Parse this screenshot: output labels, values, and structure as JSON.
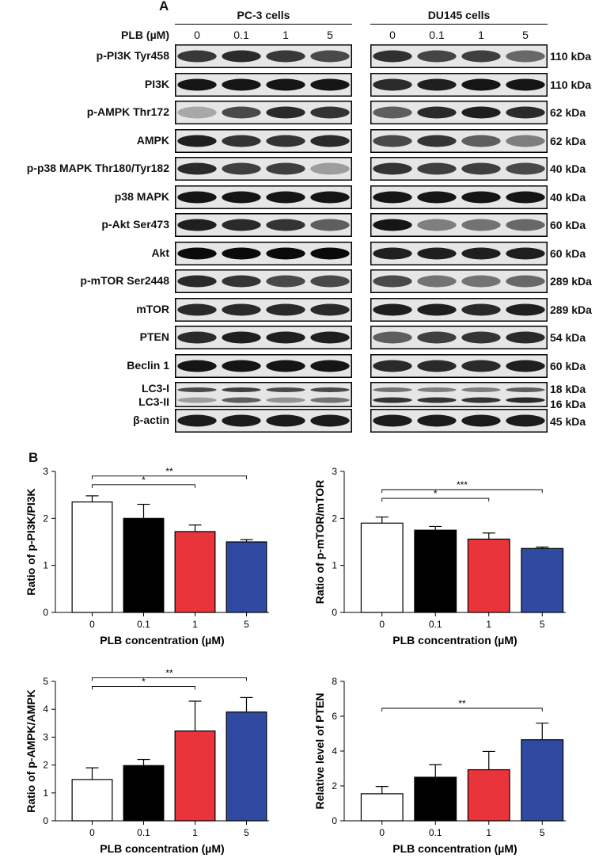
{
  "panel_letters": {
    "a": "A",
    "b": "B"
  },
  "western_blot": {
    "treatment_label": "PLB (µM)",
    "doses": [
      "0",
      "0.1",
      "1",
      "5"
    ],
    "cell_lines": [
      {
        "name": "PC-3 cells"
      },
      {
        "name": "DU145 cells"
      }
    ],
    "rows": [
      {
        "protein": "p-PI3K Tyr458",
        "size": "110 kDa",
        "pc3": [
          0.78,
          0.85,
          0.78,
          0.7
        ],
        "du145": [
          0.82,
          0.72,
          0.75,
          0.55
        ]
      },
      {
        "protein": "PI3K",
        "size": "110 kDa",
        "pc3": [
          0.95,
          0.95,
          0.95,
          0.95
        ],
        "du145": [
          0.85,
          0.9,
          0.95,
          0.95
        ]
      },
      {
        "protein": "p-AMPK Thr172",
        "size": "62 kDa",
        "pc3": [
          0.25,
          0.7,
          0.85,
          0.8
        ],
        "du145": [
          0.6,
          0.85,
          0.9,
          0.85
        ]
      },
      {
        "protein": "AMPK",
        "size": "62 kDa",
        "pc3": [
          0.9,
          0.8,
          0.8,
          0.85
        ],
        "du145": [
          0.7,
          0.8,
          0.6,
          0.45
        ]
      },
      {
        "protein": "p-p38 MAPK Thr180/Tyr182",
        "size": "40 kDa",
        "pc3": [
          0.85,
          0.75,
          0.75,
          0.3
        ],
        "du145": [
          0.8,
          0.75,
          0.75,
          0.7
        ]
      },
      {
        "protein": "p38 MAPK",
        "size": "40 kDa",
        "pc3": [
          0.95,
          0.95,
          0.95,
          0.95
        ],
        "du145": [
          0.95,
          0.95,
          0.95,
          0.95
        ]
      },
      {
        "protein": "p-Akt Ser473",
        "size": "60 kDa",
        "pc3": [
          0.9,
          0.85,
          0.8,
          0.6
        ],
        "du145": [
          0.95,
          0.45,
          0.5,
          0.55
        ]
      },
      {
        "protein": "Akt",
        "size": "60 kDa",
        "pc3": [
          1.0,
          1.0,
          1.0,
          1.0
        ],
        "du145": [
          0.9,
          0.9,
          0.9,
          0.9
        ]
      },
      {
        "protein": "p-mTOR Ser2448",
        "size": "289 kDa",
        "pc3": [
          0.85,
          0.8,
          0.7,
          0.7
        ],
        "du145": [
          0.7,
          0.5,
          0.5,
          0.55
        ]
      },
      {
        "protein": "mTOR",
        "size": "289 kDa",
        "pc3": [
          0.85,
          0.85,
          0.85,
          0.85
        ],
        "du145": [
          0.9,
          0.9,
          0.85,
          0.9
        ]
      },
      {
        "protein": "PTEN",
        "size": "54 kDa",
        "pc3": [
          0.85,
          0.9,
          0.9,
          0.9
        ],
        "du145": [
          0.6,
          0.75,
          0.8,
          0.85
        ]
      },
      {
        "protein": "Beclin 1",
        "size": "60 kDa",
        "pc3": [
          0.95,
          0.95,
          0.95,
          0.95
        ],
        "du145": [
          0.85,
          0.85,
          0.85,
          0.9
        ]
      }
    ],
    "lc3": {
      "label_1": "LC3-I",
      "label_2": "LC3-II",
      "size_1": "18 kDa",
      "size_2": "16 kDa"
    },
    "actin": {
      "protein": "β-actin",
      "size": "45 kDa"
    }
  },
  "chart_data": [
    {
      "type": "bar",
      "categories": [
        "0",
        "0.1",
        "1",
        "5"
      ],
      "values": [
        2.35,
        2.0,
        1.72,
        1.5
      ],
      "errors": [
        0.13,
        0.3,
        0.14,
        0.05
      ],
      "colors": [
        "#ffffff",
        "#000000",
        "#e8343a",
        "#2f4aa0"
      ],
      "xlabel": "PLB concentration (µM)",
      "ylabel": "Ratio of p-PI3K/PI3K",
      "ylim": [
        0,
        3
      ],
      "yticks": [
        "0",
        "1",
        "2",
        "3"
      ],
      "significance": [
        {
          "from": "0",
          "to": "1",
          "label": "*"
        },
        {
          "from": "0",
          "to": "5",
          "label": "**"
        }
      ]
    },
    {
      "type": "bar",
      "categories": [
        "0",
        "0.1",
        "1",
        "5"
      ],
      "values": [
        1.9,
        1.75,
        1.56,
        1.36
      ],
      "errors": [
        0.13,
        0.08,
        0.13,
        0.03
      ],
      "colors": [
        "#ffffff",
        "#000000",
        "#e8343a",
        "#2f4aa0"
      ],
      "xlabel": "PLB concentration (µM)",
      "ylabel": "Ratio of p-mTOR/mTOR",
      "ylim": [
        0,
        3
      ],
      "yticks": [
        "0",
        "1",
        "2",
        "3"
      ],
      "significance": [
        {
          "from": "0",
          "to": "1",
          "label": "*"
        },
        {
          "from": "0",
          "to": "5",
          "label": "***"
        }
      ]
    },
    {
      "type": "bar",
      "categories": [
        "0",
        "0.1",
        "1",
        "5"
      ],
      "values": [
        1.48,
        1.98,
        3.22,
        3.9
      ],
      "errors": [
        0.42,
        0.22,
        1.07,
        0.52
      ],
      "colors": [
        "#ffffff",
        "#000000",
        "#e8343a",
        "#2f4aa0"
      ],
      "xlabel": "PLB concentration (µM)",
      "ylabel": "Ratio of p-AMPK/AMPK",
      "ylim": [
        0,
        5
      ],
      "yticks": [
        "0",
        "1",
        "2",
        "3",
        "4",
        "5"
      ],
      "significance": [
        {
          "from": "0",
          "to": "1",
          "label": "*"
        },
        {
          "from": "0",
          "to": "5",
          "label": "**"
        }
      ]
    },
    {
      "type": "bar",
      "categories": [
        "0",
        "0.1",
        "1",
        "5"
      ],
      "values": [
        1.55,
        2.5,
        2.93,
        4.65
      ],
      "errors": [
        0.42,
        0.72,
        1.05,
        0.95
      ],
      "colors": [
        "#ffffff",
        "#000000",
        "#e8343a",
        "#2f4aa0"
      ],
      "xlabel": "PLB concentration (µM)",
      "ylabel": "Relative level of PTEN",
      "ylim": [
        0,
        8
      ],
      "yticks": [
        "0",
        "2",
        "4",
        "6",
        "8"
      ],
      "significance": [
        {
          "from": "0",
          "to": "5",
          "label": "**"
        }
      ]
    }
  ]
}
